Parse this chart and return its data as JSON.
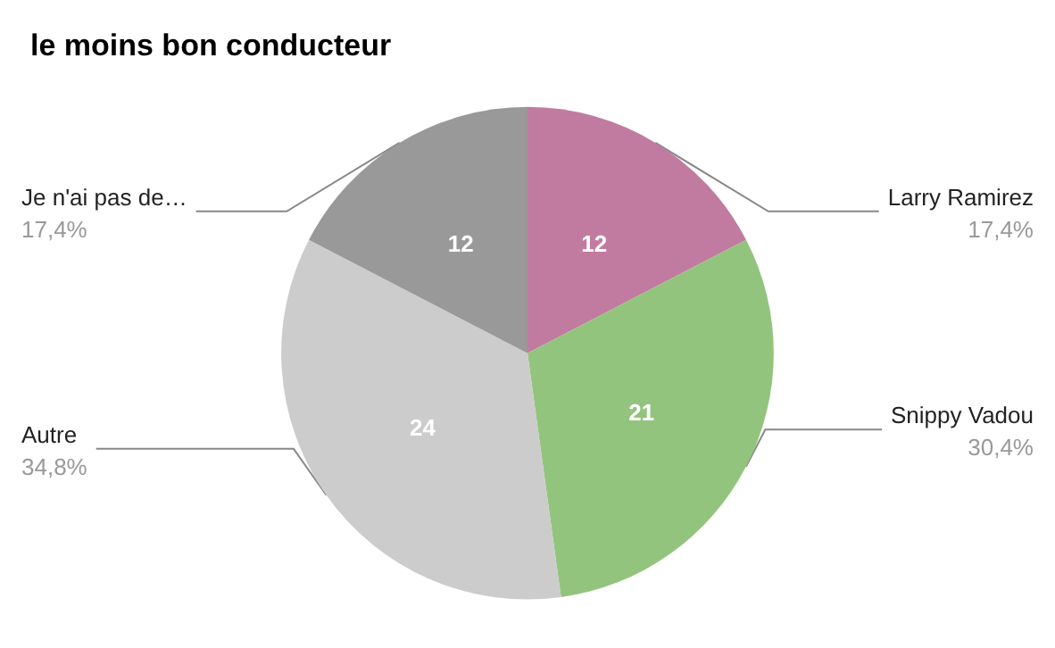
{
  "chart_data": {
    "type": "pie",
    "title": "le moins bon conducteur",
    "categories": [
      "Larry Ramirez",
      "Snippy Vadou",
      "Autre",
      "Je n'ai pas de…"
    ],
    "values": [
      12,
      21,
      24,
      12
    ],
    "colors": [
      "#c27ba0",
      "#93c47d",
      "#cccccc",
      "#999999"
    ],
    "annotations": [
      "17,4%",
      "30,4%",
      "34,8%",
      "17,4%"
    ],
    "data_labels": true,
    "legend": false
  }
}
